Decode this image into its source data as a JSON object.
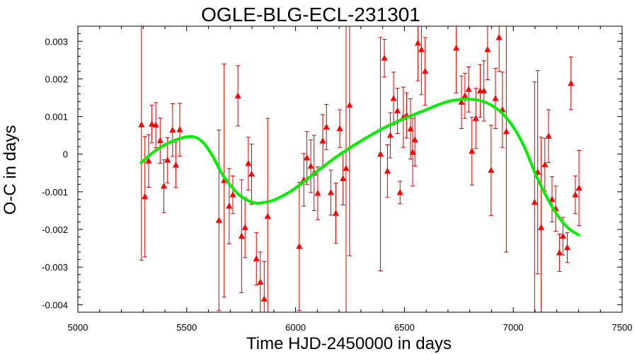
{
  "chart_data": {
    "type": "scatter",
    "title": "OGLE-BLG-ECL-231301",
    "xlabel": "Time HJD-2450000 in days",
    "ylabel": "O-C in days",
    "xlim": [
      5000,
      7500
    ],
    "ylim": [
      -0.0042,
      0.0034
    ],
    "grid": false,
    "x_ticks": [
      5000,
      5500,
      6000,
      6500,
      7000,
      7500
    ],
    "x_tick_labels": [
      "5000",
      "5500",
      "6000",
      "6500",
      "7000",
      "7500"
    ],
    "y_ticks": [
      0.003,
      0.002,
      0.001,
      0,
      -0.001,
      -0.002,
      -0.003,
      -0.004
    ],
    "y_tick_labels": [
      "0.003",
      "0.002",
      "0.001",
      "0",
      "-0.001",
      "-0.002",
      "-0.003",
      "-0.004"
    ],
    "colors": {
      "points": "#ff0000",
      "errorbars": "#cc0000",
      "fit": "#00ee00",
      "axes": "#000000"
    },
    "series": [
      {
        "marker": "triangle",
        "points": [
          {
            "x": 5292,
            "y": 0.00078,
            "err": 0.0036
          },
          {
            "x": 5308,
            "y": -0.00113,
            "err": 0.0016
          },
          {
            "x": 5325,
            "y": -0.00018,
            "err": 0.0007
          },
          {
            "x": 5340,
            "y": 0.0008,
            "err": 0.0005
          },
          {
            "x": 5358,
            "y": 0.00077,
            "err": 0.0006
          },
          {
            "x": 5378,
            "y": 0.00036,
            "err": 0.0006
          },
          {
            "x": 5395,
            "y": -0.00085,
            "err": 0.0007
          },
          {
            "x": 5412,
            "y": -0.00016,
            "err": 0.0006
          },
          {
            "x": 5435,
            "y": 0.00064,
            "err": 0.0007
          },
          {
            "x": 5450,
            "y": -0.00029,
            "err": 0.0006
          },
          {
            "x": 5468,
            "y": 0.00065,
            "err": 0.0007
          },
          {
            "x": 5648,
            "y": -0.00176,
            "err": 0.0024
          },
          {
            "x": 5672,
            "y": -0.0007,
            "err": 0.0031
          },
          {
            "x": 5695,
            "y": -0.00138,
            "err": 0.001
          },
          {
            "x": 5712,
            "y": -0.00108,
            "err": 0.0005
          },
          {
            "x": 5735,
            "y": 0.00155,
            "err": 0.0008
          },
          {
            "x": 5752,
            "y": -0.00218,
            "err": 0.0015
          },
          {
            "x": 5768,
            "y": -0.00195,
            "err": 0.0008
          },
          {
            "x": 5783,
            "y": -0.00025,
            "err": 0.0007
          },
          {
            "x": 5798,
            "y": -0.00053,
            "err": 0.0008
          },
          {
            "x": 5820,
            "y": -0.00278,
            "err": 0.0007
          },
          {
            "x": 5838,
            "y": -0.0034,
            "err": 0.0008
          },
          {
            "x": 5856,
            "y": -0.00385,
            "err": 0.001
          },
          {
            "x": 5872,
            "y": -0.00165,
            "err": 0.0026
          },
          {
            "x": 6017,
            "y": -0.00245,
            "err": 0.0017
          },
          {
            "x": 6038,
            "y": -0.00068,
            "err": 0.0007
          },
          {
            "x": 6052,
            "y": -0.0001,
            "err": 0.0007
          },
          {
            "x": 6070,
            "y": -0.00032,
            "err": 0.0007
          },
          {
            "x": 6085,
            "y": -0.0005,
            "err": 0.001
          },
          {
            "x": 6102,
            "y": -0.00104,
            "err": 0.0007
          },
          {
            "x": 6125,
            "y": 0.00035,
            "err": 0.0007
          },
          {
            "x": 6142,
            "y": 0.00072,
            "err": 0.0006
          },
          {
            "x": 6162,
            "y": -0.00102,
            "err": 0.0006
          },
          {
            "x": 6185,
            "y": -0.00157,
            "err": 0.0008
          },
          {
            "x": 6203,
            "y": 0.00068,
            "err": 0.0005
          },
          {
            "x": 6218,
            "y": -0.00065,
            "err": 0.0007
          },
          {
            "x": 6232,
            "y": -0.00038,
            "err": 0.004
          },
          {
            "x": 6248,
            "y": 0.0013,
            "err": 0.004
          },
          {
            "x": 6390,
            "y": 0.0,
            "err": 0.0031
          },
          {
            "x": 6408,
            "y": 0.00255,
            "err": 0.0005
          },
          {
            "x": 6422,
            "y": -0.00045,
            "err": 0.0007
          },
          {
            "x": 6435,
            "y": 0.0005,
            "err": 0.0006
          },
          {
            "x": 6450,
            "y": 0.00148,
            "err": 0.0007
          },
          {
            "x": 6468,
            "y": 0.00115,
            "err": 0.0006
          },
          {
            "x": 6480,
            "y": -0.00102,
            "err": 0.0003
          },
          {
            "x": 6495,
            "y": 0.00098,
            "err": 0.0008
          },
          {
            "x": 6510,
            "y": 0.00103,
            "err": 0.0006
          },
          {
            "x": 6528,
            "y": 0.00067,
            "err": 0.0008
          },
          {
            "x": 6538,
            "y": 5e-05,
            "err": 0.0009
          },
          {
            "x": 6548,
            "y": 0.00038,
            "err": 0.0007
          },
          {
            "x": 6562,
            "y": 0.00295,
            "err": 0.001
          },
          {
            "x": 6578,
            "y": 0.00278,
            "err": 0.0012
          },
          {
            "x": 6595,
            "y": 0.0022,
            "err": 0.0009
          },
          {
            "x": 6738,
            "y": 0.00282,
            "err": 0.0012
          },
          {
            "x": 6762,
            "y": 0.00138,
            "err": 0.0007
          },
          {
            "x": 6778,
            "y": 0.00155,
            "err": 0.0006
          },
          {
            "x": 6795,
            "y": 0.00172,
            "err": 0.0006
          },
          {
            "x": 6810,
            "y": 8e-05,
            "err": 0.0009
          },
          {
            "x": 6828,
            "y": 0.00095,
            "err": 0.0008
          },
          {
            "x": 6848,
            "y": 0.00168,
            "err": 0.0007
          },
          {
            "x": 6865,
            "y": 0.00168,
            "err": 0.0008
          },
          {
            "x": 6882,
            "y": 0.00278,
            "err": 0.0008
          },
          {
            "x": 6898,
            "y": -0.00043,
            "err": 0.0012
          },
          {
            "x": 6918,
            "y": 0.00148,
            "err": 0.0008
          },
          {
            "x": 6935,
            "y": 0.0031,
            "err": 0.0009
          },
          {
            "x": 6950,
            "y": 0.00118,
            "err": 0.001
          },
          {
            "x": 6968,
            "y": 0.0006,
            "err": 0.0032
          },
          {
            "x": 7098,
            "y": -0.00128,
            "err": 0.0032
          },
          {
            "x": 7112,
            "y": -0.00048,
            "err": 0.0027
          },
          {
            "x": 7128,
            "y": -0.00195,
            "err": 0.0024
          },
          {
            "x": 7145,
            "y": -0.00028,
            "err": 0.0007
          },
          {
            "x": 7162,
            "y": 0.00048,
            "err": 0.0007
          },
          {
            "x": 7178,
            "y": -0.0012,
            "err": 0.0006
          },
          {
            "x": 7195,
            "y": -0.00145,
            "err": 0.0006
          },
          {
            "x": 7212,
            "y": -0.00262,
            "err": 0.0005
          },
          {
            "x": 7228,
            "y": -0.00218,
            "err": 0.0005
          },
          {
            "x": 7248,
            "y": -0.00248,
            "err": 0.0004
          },
          {
            "x": 7265,
            "y": 0.00188,
            "err": 0.0007
          },
          {
            "x": 7285,
            "y": -0.00108,
            "err": 0.0005
          },
          {
            "x": 7302,
            "y": -0.0009,
            "err": 0.001
          }
        ]
      }
    ],
    "fit": {
      "type": "line",
      "x": [
        5290,
        5350,
        5400,
        5450,
        5500,
        5540,
        5580,
        5620,
        5660,
        5700,
        5740,
        5780,
        5820,
        5860,
        5900,
        5950,
        6000,
        6100,
        6200,
        6300,
        6400,
        6500,
        6600,
        6650,
        6700,
        6750,
        6800,
        6850,
        6900,
        6950,
        7000,
        7050,
        7100,
        7150,
        7200,
        7250,
        7300
      ],
      "y": [
        -0.00023,
        7e-05,
        0.00025,
        0.00038,
        0.00046,
        0.00045,
        0.00028,
        -6e-05,
        -0.0005,
        -0.00082,
        -0.00108,
        -0.00123,
        -0.0013,
        -0.00128,
        -0.00122,
        -0.00108,
        -0.0009,
        -0.00045,
        -2e-05,
        0.00035,
        0.00068,
        0.00095,
        0.00118,
        0.0013,
        0.0014,
        0.00145,
        0.00146,
        0.00142,
        0.0013,
        0.00108,
        0.00072,
        0.0002,
        -0.0005,
        -0.0011,
        -0.0016,
        -0.00195,
        -0.00215
      ]
    }
  }
}
